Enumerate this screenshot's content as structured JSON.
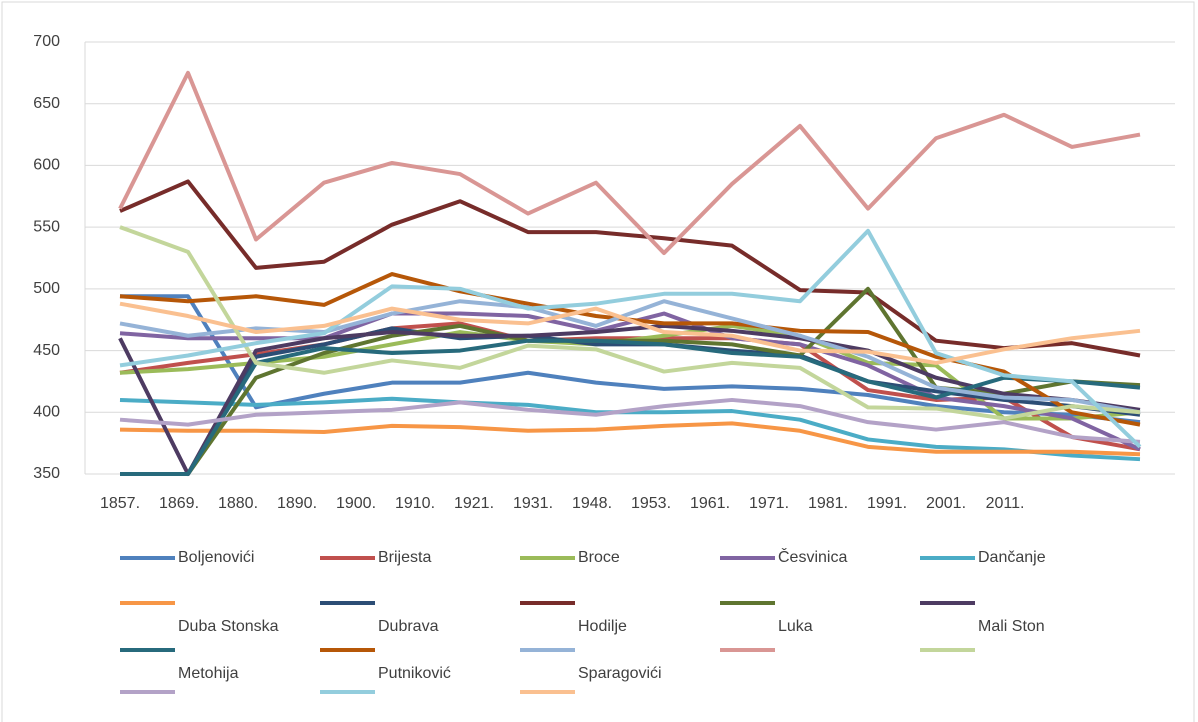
{
  "chart_data": {
    "type": "line",
    "categories": [
      "1857.",
      "1869.",
      "1880.",
      "1890.",
      "1900.",
      "1910.",
      "1921.",
      "1931.",
      "1948.",
      "1953.",
      "1961.",
      "1971.",
      "1981.",
      "1991.",
      "2001.",
      "2011."
    ],
    "ylim": [
      350,
      700
    ],
    "yticks": [
      350,
      400,
      450,
      500,
      550,
      600,
      650,
      700
    ],
    "grid": true,
    "legend": "bottom",
    "series": [
      {
        "name": "Boljenovići",
        "color": "#4f81bd",
        "values": [
          494,
          494,
          404,
          415,
          424,
          424,
          432,
          424,
          419,
          421,
          419,
          414,
          405,
          400,
          398,
          392
        ]
      },
      {
        "name": "Brijesta",
        "color": "#c0504d",
        "values": [
          432,
          440,
          447,
          455,
          468,
          472,
          458,
          460,
          460,
          460,
          455,
          418,
          410,
          412,
          380,
          370
        ]
      },
      {
        "name": "Broce",
        "color": "#9bbb59",
        "values": [
          432,
          435,
          440,
          445,
          455,
          465,
          458,
          455,
          462,
          470,
          462,
          440,
          438,
          395,
          395,
          400
        ]
      },
      {
        "name": "Česvinica",
        "color": "#8064a2",
        "values": [
          464,
          460,
          460,
          460,
          480,
          480,
          478,
          466,
          480,
          460,
          455,
          438,
          412,
          405,
          395,
          370
        ]
      },
      {
        "name": "Dančanje",
        "color": "#4bacc6",
        "values": [
          410,
          408,
          406,
          408,
          411,
          408,
          406,
          400,
          400,
          401,
          394,
          378,
          372,
          370,
          365,
          362
        ]
      },
      {
        "name": "Duba Stonska",
        "color": "#f79646",
        "values": [
          386,
          385,
          385,
          384,
          389,
          388,
          385,
          386,
          389,
          391,
          385,
          372,
          368,
          368,
          368,
          366
        ]
      },
      {
        "name": "Dubrava",
        "color": "#2c4d75",
        "values": [
          350,
          350,
          445,
          455,
          468,
          460,
          462,
          455,
          455,
          450,
          446,
          425,
          417,
          410,
          405,
          398
        ]
      },
      {
        "name": "Hodilje",
        "color": "#772c2a",
        "values": [
          563,
          587,
          517,
          522,
          552,
          571,
          546,
          546,
          541,
          535,
          499,
          497,
          458,
          452,
          456,
          446
        ]
      },
      {
        "name": "Luka",
        "color": "#5f7530",
        "values": [
          350,
          350,
          428,
          448,
          462,
          470,
          458,
          458,
          458,
          455,
          446,
          500,
          420,
          415,
          425,
          422
        ]
      },
      {
        "name": "Mali Ston",
        "color": "#4d3b62",
        "values": [
          460,
          350,
          450,
          460,
          465,
          462,
          462,
          465,
          470,
          466,
          460,
          450,
          428,
          415,
          410,
          402
        ]
      },
      {
        "name": "Metohija",
        "color": "#276a7c",
        "values": [
          350,
          350,
          440,
          452,
          448,
          450,
          458,
          458,
          455,
          448,
          445,
          425,
          412,
          428,
          425,
          420
        ]
      },
      {
        "name": "Putniković",
        "color": "#b65708",
        "values": [
          494,
          490,
          494,
          487,
          512,
          498,
          488,
          478,
          472,
          472,
          466,
          465,
          445,
          433,
          400,
          390
        ]
      },
      {
        "name": "Sparagovići",
        "color": "#95b3d7",
        "values": [
          472,
          462,
          468,
          465,
          480,
          490,
          485,
          470,
          490,
          476,
          462,
          445,
          420,
          412,
          410,
          400
        ]
      },
      {
        "color": "#d99694",
        "values": [
          565,
          675,
          540,
          586,
          602,
          593,
          561,
          586,
          529,
          585,
          632,
          565,
          622,
          641,
          615,
          625
        ]
      },
      {
        "color": "#c3d69b",
        "values": [
          550,
          530,
          440,
          432,
          442,
          436,
          454,
          451,
          433,
          440,
          436,
          404,
          403,
          395,
          405,
          400
        ]
      },
      {
        "color": "#b3a2c7",
        "values": [
          394,
          390,
          398,
          400,
          402,
          408,
          402,
          398,
          405,
          410,
          405,
          392,
          386,
          392,
          380,
          376
        ]
      },
      {
        "color": "#93cddd",
        "values": [
          438,
          446,
          456,
          464,
          502,
          500,
          484,
          488,
          496,
          496,
          490,
          547,
          448,
          430,
          425,
          372
        ]
      },
      {
        "color": "#fac090",
        "values": [
          488,
          478,
          465,
          470,
          484,
          475,
          472,
          484,
          465,
          462,
          450,
          449,
          440,
          451,
          460,
          466
        ]
      }
    ]
  }
}
